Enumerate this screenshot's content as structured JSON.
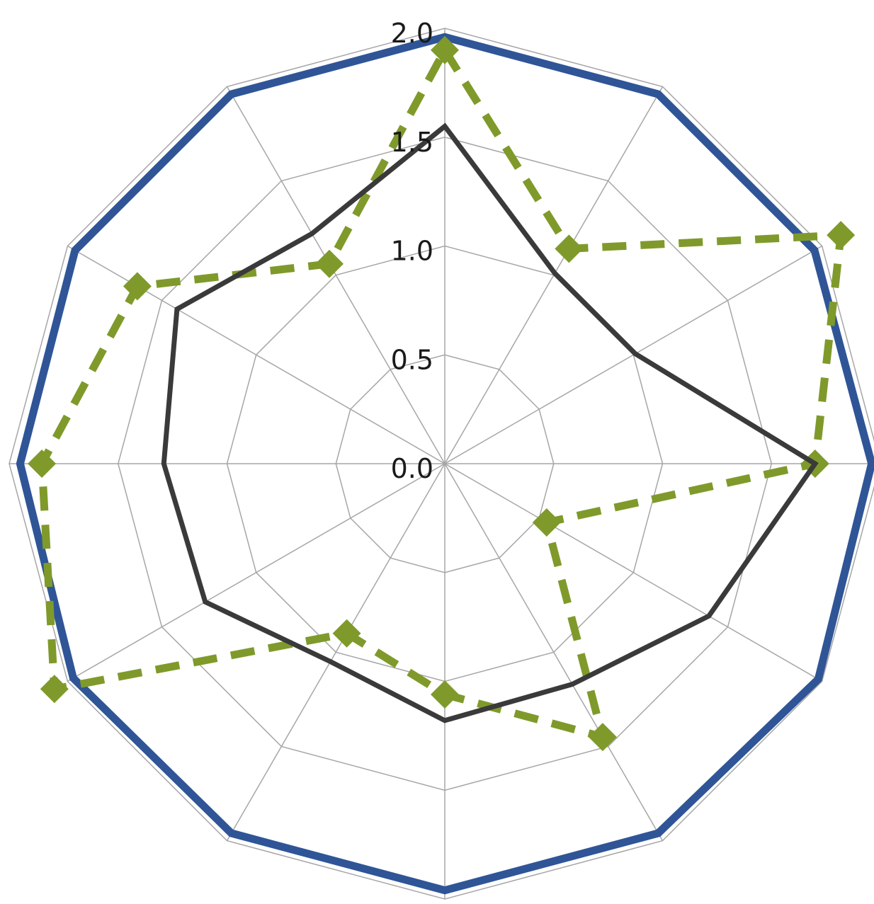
{
  "chart_data": {
    "type": "radar",
    "title": "",
    "axis_count": 12,
    "r_range": [
      0,
      2.0
    ],
    "tick_labels": [
      "0.0",
      "0.5",
      "1.0",
      "1.5",
      "2.0"
    ],
    "tick_values": [
      0,
      0.5,
      1.0,
      1.5,
      2.0
    ],
    "grid": true,
    "legend": "none",
    "series": [
      {
        "color": "#2f5597",
        "style": "solid-thick",
        "values": [
          1.96,
          1.96,
          1.96,
          1.96,
          1.98,
          1.96,
          1.96,
          1.96,
          1.97,
          1.95,
          1.96,
          1.96
        ]
      },
      {
        "color": "#7f9a2a",
        "style": "dashed-diamond",
        "values": [
          1.9,
          1.14,
          2.1,
          1.7,
          0.54,
          1.45,
          1.06,
          0.9,
          2.07,
          1.85,
          1.63,
          1.06
        ]
      },
      {
        "color": "#3a3a3a",
        "style": "solid",
        "values": [
          1.55,
          1.01,
          1.01,
          1.7,
          1.4,
          1.17,
          1.18,
          1.05,
          1.27,
          1.29,
          1.42,
          1.22
        ]
      }
    ]
  }
}
